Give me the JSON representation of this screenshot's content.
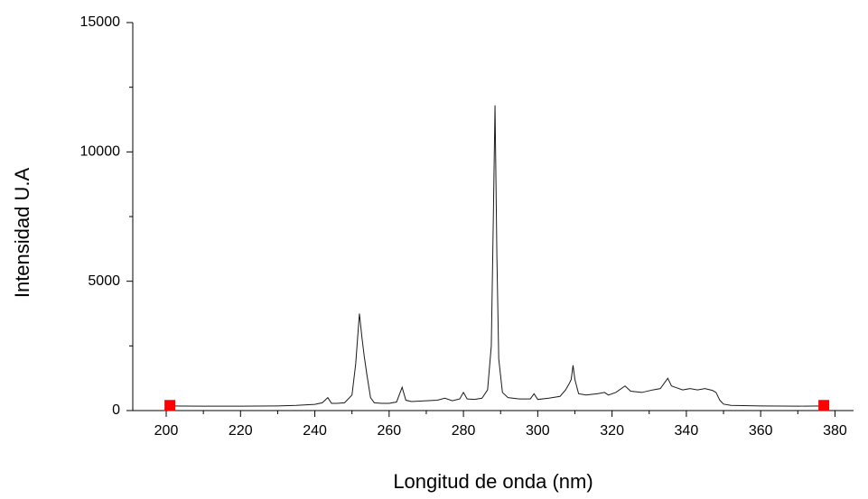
{
  "chart_data": {
    "type": "line",
    "x_label": "Longitud de onda (nm)",
    "y_label": "Intensidad U.A",
    "xlim": [
      191,
      385
    ],
    "ylim": [
      0,
      15000
    ],
    "xticks": [
      200,
      220,
      240,
      260,
      280,
      300,
      320,
      340,
      360,
      380
    ],
    "yticks": [
      0,
      5000,
      10000,
      15000
    ],
    "x_minor_ticks": [
      210,
      230,
      250,
      270,
      290,
      310,
      330,
      350,
      370
    ],
    "y_minor_ticks": [
      2500,
      7500,
      12500
    ],
    "series": [
      {
        "mode": "line",
        "color": "#1a1a1a",
        "x": [
          200,
          210,
          220,
          230,
          235,
          240,
          242,
          243.5,
          244.5,
          246,
          248,
          250,
          251,
          252,
          252.7,
          253.3,
          254,
          255,
          256,
          258,
          260,
          262,
          263.5,
          264.5,
          266,
          270,
          273,
          275,
          277,
          279,
          280,
          281,
          283,
          285,
          286.5,
          287.5,
          288,
          288.5,
          289,
          289.5,
          290.5,
          292,
          295,
          298,
          299,
          300,
          303,
          306,
          307.5,
          308.5,
          309,
          309.5,
          310,
          311,
          313,
          316,
          318,
          319,
          321,
          323.5,
          325,
          328,
          331,
          333,
          335,
          336,
          337,
          339,
          341,
          343,
          345,
          347,
          348,
          349,
          350,
          352,
          360,
          370,
          377
        ],
        "values": [
          180,
          170,
          170,
          180,
          200,
          240,
          300,
          500,
          280,
          280,
          300,
          600,
          1800,
          3750,
          2800,
          2100,
          1400,
          500,
          300,
          280,
          280,
          330,
          900,
          400,
          350,
          380,
          400,
          480,
          380,
          450,
          700,
          450,
          430,
          480,
          800,
          2500,
          7000,
          11800,
          6000,
          2000,
          700,
          500,
          450,
          450,
          650,
          430,
          480,
          550,
          800,
          1050,
          1200,
          1750,
          1200,
          650,
          600,
          650,
          700,
          600,
          700,
          950,
          750,
          700,
          800,
          850,
          1250,
          950,
          900,
          800,
          850,
          800,
          850,
          780,
          700,
          400,
          250,
          200,
          180,
          170,
          180
        ]
      },
      {
        "mode": "markers",
        "marker": "square",
        "color": "#ff0000",
        "x": [
          201,
          377
        ],
        "values": [
          200,
          200
        ]
      }
    ]
  }
}
